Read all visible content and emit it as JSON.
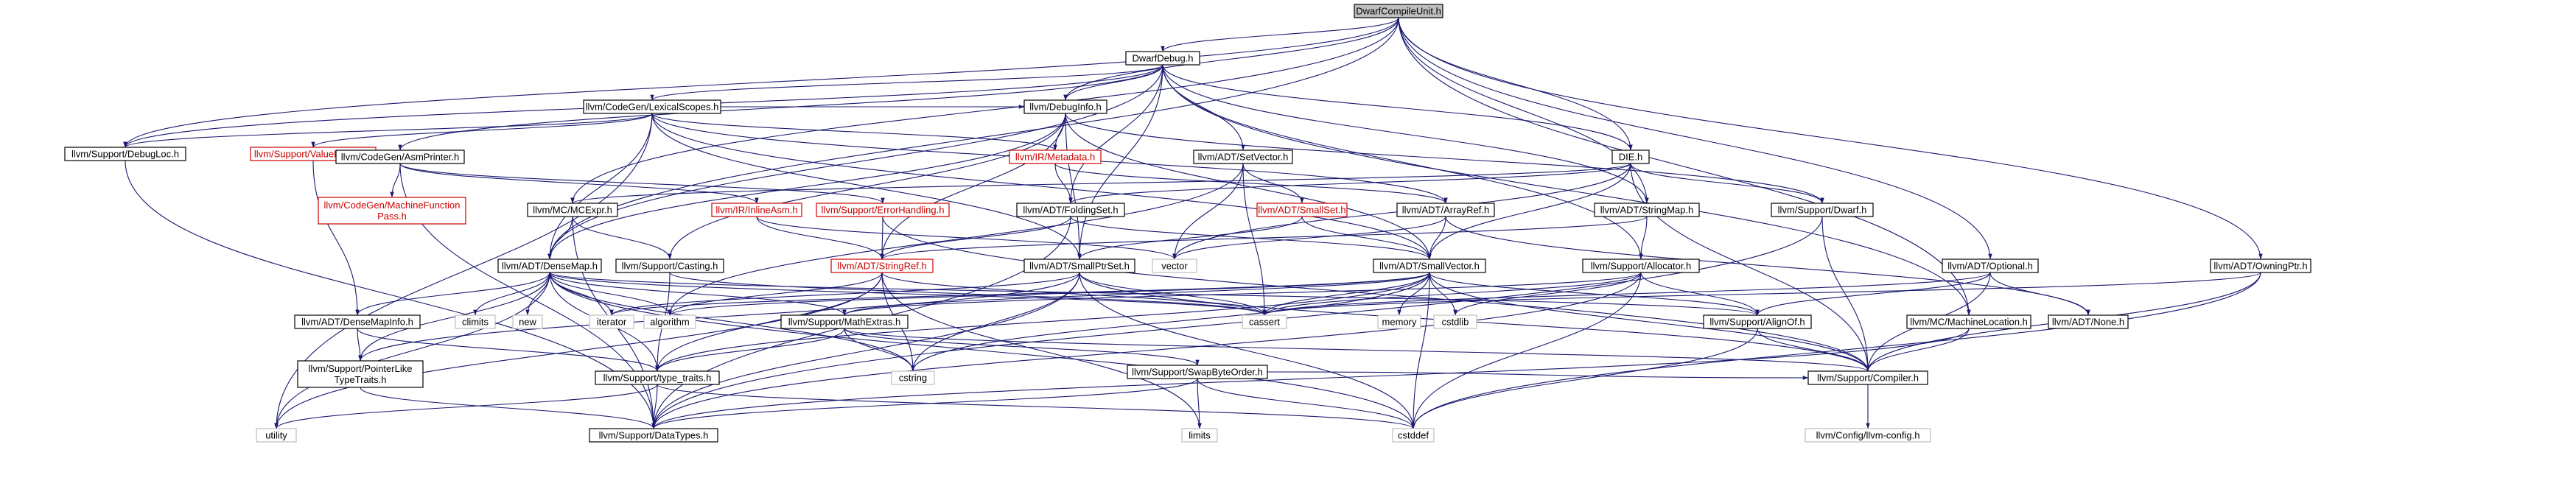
{
  "graph": {
    "title": "DwarfCompileUnit.h",
    "colors": {
      "edge": "#191970",
      "text_normal": "#000000",
      "text_missing": "#cc0000",
      "border_normal": "#000000",
      "border_missing": "#cc0000",
      "border_system": "#bfbfbf",
      "root_fill": "#bfbfbf",
      "fill": "#ffffff"
    },
    "nodes": [
      {
        "id": "root",
        "label": "DwarfCompileUnit.h",
        "kind": "root"
      },
      {
        "id": "dwarfdebug",
        "label": "DwarfDebug.h",
        "kind": "normal"
      },
      {
        "id": "lexicalscopes",
        "label": "llvm/CodeGen/LexicalScopes.h",
        "kind": "normal"
      },
      {
        "id": "debuginfo",
        "label": "llvm/DebugInfo.h",
        "kind": "normal"
      },
      {
        "id": "debugloc",
        "label": "llvm/Support/DebugLoc.h",
        "kind": "normal"
      },
      {
        "id": "valuehandle",
        "label": "llvm/Support/ValueHandle.h",
        "kind": "missing"
      },
      {
        "id": "asmprinter",
        "label": "llvm/CodeGen/AsmPrinter.h",
        "kind": "normal"
      },
      {
        "id": "mdnode",
        "label": "llvm/IR/Metadata.h",
        "kind": "missing"
      },
      {
        "id": "setvector",
        "label": "llvm/ADT/SetVector.h",
        "kind": "normal"
      },
      {
        "id": "die",
        "label": "DIE.h",
        "kind": "normal"
      },
      {
        "id": "mfpass",
        "label": "llvm/CodeGen/MachineFunction\nPass.h",
        "kind": "missing"
      },
      {
        "id": "mcexpr",
        "label": "llvm/MC/MCExpr.h",
        "kind": "normal"
      },
      {
        "id": "inlineasm",
        "label": "llvm/IR/InlineAsm.h",
        "kind": "missing"
      },
      {
        "id": "errorhandling",
        "label": "llvm/Support/ErrorHandling.h",
        "kind": "missing"
      },
      {
        "id": "foldingset",
        "label": "llvm/ADT/FoldingSet.h",
        "kind": "normal"
      },
      {
        "id": "smallset",
        "label": "llvm/ADT/SmallSet.h",
        "kind": "missing"
      },
      {
        "id": "arrayref",
        "label": "llvm/ADT/ArrayRef.h",
        "kind": "normal"
      },
      {
        "id": "stringmap",
        "label": "llvm/ADT/StringMap.h",
        "kind": "normal"
      },
      {
        "id": "supportdwarf",
        "label": "llvm/Support/Dwarf.h",
        "kind": "normal"
      },
      {
        "id": "densemap",
        "label": "llvm/ADT/DenseMap.h",
        "kind": "normal"
      },
      {
        "id": "casting",
        "label": "llvm/Support/Casting.h",
        "kind": "normal"
      },
      {
        "id": "stringref",
        "label": "llvm/ADT/StringRef.h",
        "kind": "missing"
      },
      {
        "id": "smallptrset",
        "label": "llvm/ADT/SmallPtrSet.h",
        "kind": "normal"
      },
      {
        "id": "vector",
        "label": "vector",
        "kind": "system"
      },
      {
        "id": "smallvector",
        "label": "llvm/ADT/SmallVector.h",
        "kind": "normal"
      },
      {
        "id": "allocator",
        "label": "llvm/Support/Allocator.h",
        "kind": "normal"
      },
      {
        "id": "optional",
        "label": "llvm/ADT/Optional.h",
        "kind": "normal"
      },
      {
        "id": "owningptr",
        "label": "llvm/ADT/OwningPtr.h",
        "kind": "normal"
      },
      {
        "id": "densemapinfo",
        "label": "llvm/ADT/DenseMapInfo.h",
        "kind": "normal"
      },
      {
        "id": "climits",
        "label": "climits",
        "kind": "system"
      },
      {
        "id": "new",
        "label": "new",
        "kind": "system"
      },
      {
        "id": "iterator",
        "label": "iterator",
        "kind": "system"
      },
      {
        "id": "algorithm",
        "label": "algorithm",
        "kind": "system"
      },
      {
        "id": "mathextras",
        "label": "llvm/Support/MathExtras.h",
        "kind": "normal"
      },
      {
        "id": "cassert",
        "label": "cassert",
        "kind": "system"
      },
      {
        "id": "memory",
        "label": "memory",
        "kind": "system"
      },
      {
        "id": "cstdlib",
        "label": "cstdlib",
        "kind": "system"
      },
      {
        "id": "alignof",
        "label": "llvm/Support/AlignOf.h",
        "kind": "normal"
      },
      {
        "id": "machinelocation",
        "label": "llvm/MC/MachineLocation.h",
        "kind": "normal"
      },
      {
        "id": "none",
        "label": "llvm/ADT/None.h",
        "kind": "normal"
      },
      {
        "id": "pointerlike",
        "label": "llvm/Support/PointerLike\nTypeTraits.h",
        "kind": "normal"
      },
      {
        "id": "typetraits",
        "label": "llvm/Support/type_traits.h",
        "kind": "normal"
      },
      {
        "id": "swapbyteorder",
        "label": "llvm/Support/SwapByteOrder.h",
        "kind": "normal"
      },
      {
        "id": "compiler",
        "label": "llvm/Support/Compiler.h",
        "kind": "normal"
      },
      {
        "id": "utility",
        "label": "utility",
        "kind": "system"
      },
      {
        "id": "cstring",
        "label": "cstring",
        "kind": "system"
      },
      {
        "id": "datatypes",
        "label": "llvm/Support/DataTypes.h",
        "kind": "normal"
      },
      {
        "id": "limits",
        "label": "limits",
        "kind": "system"
      },
      {
        "id": "cstddef",
        "label": "cstddef",
        "kind": "system"
      },
      {
        "id": "llvmconfig",
        "label": "llvm/Config/llvm-config.h",
        "kind": "system"
      }
    ],
    "edges": [
      [
        "root",
        "dwarfdebug"
      ],
      [
        "root",
        "debuginfo"
      ],
      [
        "root",
        "debugloc"
      ],
      [
        "root",
        "die"
      ],
      [
        "root",
        "stringmap"
      ],
      [
        "root",
        "densemap"
      ],
      [
        "root",
        "mcexpr"
      ],
      [
        "root",
        "optional"
      ],
      [
        "root",
        "owningptr"
      ],
      [
        "root",
        "machinelocation"
      ],
      [
        "dwarfdebug",
        "lexicalscopes"
      ],
      [
        "dwarfdebug",
        "debuginfo"
      ],
      [
        "dwarfdebug",
        "debugloc"
      ],
      [
        "dwarfdebug",
        "asmprinter"
      ],
      [
        "dwarfdebug",
        "setvector"
      ],
      [
        "dwarfdebug",
        "die"
      ],
      [
        "dwarfdebug",
        "foldingset"
      ],
      [
        "dwarfdebug",
        "smallptrset"
      ],
      [
        "dwarfdebug",
        "densemap"
      ],
      [
        "dwarfdebug",
        "stringmap"
      ],
      [
        "dwarfdebug",
        "allocator"
      ],
      [
        "dwarfdebug",
        "machinelocation"
      ],
      [
        "lexicalscopes",
        "debuginfo"
      ],
      [
        "lexicalscopes",
        "debugloc"
      ],
      [
        "lexicalscopes",
        "valuehandle"
      ],
      [
        "lexicalscopes",
        "mdnode"
      ],
      [
        "lexicalscopes",
        "arrayref"
      ],
      [
        "lexicalscopes",
        "densemap"
      ],
      [
        "lexicalscopes",
        "smallptrset"
      ],
      [
        "lexicalscopes",
        "smallvector"
      ],
      [
        "lexicalscopes",
        "utility"
      ],
      [
        "debuginfo",
        "mdnode"
      ],
      [
        "debuginfo",
        "densemap"
      ],
      [
        "debuginfo",
        "smallptrset"
      ],
      [
        "debuginfo",
        "smallvector"
      ],
      [
        "debuginfo",
        "stringref"
      ],
      [
        "debuginfo",
        "casting"
      ],
      [
        "debuginfo",
        "supportdwarf"
      ],
      [
        "debugloc",
        "datatypes"
      ],
      [
        "valuehandle",
        "densemapinfo"
      ],
      [
        "asmprinter",
        "mfpass"
      ],
      [
        "asmprinter",
        "inlineasm"
      ],
      [
        "asmprinter",
        "errorhandling"
      ],
      [
        "asmprinter",
        "datatypes"
      ],
      [
        "mdnode",
        "foldingset"
      ],
      [
        "mdnode",
        "arrayref"
      ],
      [
        "setvector",
        "smallset"
      ],
      [
        "setvector",
        "algorithm"
      ],
      [
        "setvector",
        "cassert"
      ],
      [
        "setvector",
        "vector"
      ],
      [
        "die",
        "foldingset"
      ],
      [
        "die",
        "smallvector"
      ],
      [
        "die",
        "supportdwarf"
      ],
      [
        "die",
        "compiler"
      ],
      [
        "die",
        "vector"
      ],
      [
        "die",
        "mcexpr"
      ],
      [
        "mcexpr",
        "densemap"
      ],
      [
        "mcexpr",
        "casting"
      ],
      [
        "mcexpr",
        "datatypes"
      ],
      [
        "inlineasm",
        "stringref"
      ],
      [
        "inlineasm",
        "vector"
      ],
      [
        "errorhandling",
        "stringref"
      ],
      [
        "errorhandling",
        "compiler"
      ],
      [
        "foldingset",
        "smallvector"
      ],
      [
        "foldingset",
        "stringref"
      ],
      [
        "foldingset",
        "datatypes"
      ],
      [
        "smallset",
        "smallptrset"
      ],
      [
        "smallset",
        "smallvector"
      ],
      [
        "arrayref",
        "none"
      ],
      [
        "arrayref",
        "smallvector"
      ],
      [
        "arrayref",
        "vector"
      ],
      [
        "stringmap",
        "stringref"
      ],
      [
        "stringmap",
        "allocator"
      ],
      [
        "supportdwarf",
        "compiler"
      ],
      [
        "supportdwarf",
        "datatypes"
      ],
      [
        "densemap",
        "densemapinfo"
      ],
      [
        "densemap",
        "alignof"
      ],
      [
        "densemap",
        "mathextras"
      ],
      [
        "densemap",
        "pointerlike"
      ],
      [
        "densemap",
        "typetraits"
      ],
      [
        "densemap",
        "algorithm"
      ],
      [
        "densemap",
        "cassert"
      ],
      [
        "densemap",
        "climits"
      ],
      [
        "densemap",
        "cstddef"
      ],
      [
        "densemap",
        "cstring"
      ],
      [
        "densemap",
        "iterator"
      ],
      [
        "densemap",
        "new"
      ],
      [
        "densemap",
        "utility"
      ],
      [
        "casting",
        "typetraits"
      ],
      [
        "casting",
        "cassert"
      ],
      [
        "stringref",
        "typetraits"
      ],
      [
        "stringref",
        "algorithm"
      ],
      [
        "stringref",
        "cassert"
      ],
      [
        "stringref",
        "cstring"
      ],
      [
        "stringref",
        "limits"
      ],
      [
        "stringref",
        "string"
      ],
      [
        "stringref",
        "utility"
      ],
      [
        "smallptrset",
        "compiler"
      ],
      [
        "smallptrset",
        "datatypes"
      ],
      [
        "smallptrset",
        "pointerlike"
      ],
      [
        "smallptrset",
        "cassert"
      ],
      [
        "smallptrset",
        "cstddef"
      ],
      [
        "smallptrset",
        "cstring"
      ],
      [
        "smallptrset",
        "iterator"
      ],
      [
        "smallvector",
        "alignof"
      ],
      [
        "smallvector",
        "compiler"
      ],
      [
        "smallvector",
        "mathextras"
      ],
      [
        "smallvector",
        "typetraits"
      ],
      [
        "smallvector",
        "algorithm"
      ],
      [
        "smallvector",
        "cassert"
      ],
      [
        "smallvector",
        "cstddef"
      ],
      [
        "smallvector",
        "cstdlib"
      ],
      [
        "smallvector",
        "cstring"
      ],
      [
        "smallvector",
        "iterator"
      ],
      [
        "smallvector",
        "memory"
      ],
      [
        "allocator",
        "alignof"
      ],
      [
        "allocator",
        "datatypes"
      ],
      [
        "allocator",
        "mathextras"
      ],
      [
        "allocator",
        "cassert"
      ],
      [
        "allocator",
        "cstddef"
      ],
      [
        "allocator",
        "cstdlib"
      ],
      [
        "optional",
        "none"
      ],
      [
        "optional",
        "alignof"
      ],
      [
        "optional",
        "compiler"
      ],
      [
        "optional",
        "cassert"
      ],
      [
        "owningptr",
        "compiler"
      ],
      [
        "owningptr",
        "cassert"
      ],
      [
        "owningptr",
        "cstddef"
      ],
      [
        "densemapinfo",
        "pointerlike"
      ],
      [
        "densemapinfo",
        "typetraits"
      ],
      [
        "mathextras",
        "compiler"
      ],
      [
        "mathextras",
        "swapbyteorder"
      ],
      [
        "mathextras",
        "typetraits"
      ],
      [
        "mathextras",
        "cstring"
      ],
      [
        "alignof",
        "compiler"
      ],
      [
        "alignof",
        "cstddef"
      ],
      [
        "machinelocation",
        "compiler"
      ],
      [
        "machinelocation",
        "datatypes"
      ],
      [
        "pointerlike",
        "datatypes"
      ],
      [
        "typetraits",
        "datatypes"
      ],
      [
        "typetraits",
        "cstddef"
      ],
      [
        "typetraits",
        "utility"
      ],
      [
        "swapbyteorder",
        "compiler"
      ],
      [
        "swapbyteorder",
        "datatypes"
      ],
      [
        "swapbyteorder",
        "cstddef"
      ],
      [
        "swapbyteorder",
        "limits"
      ],
      [
        "compiler",
        "llvmconfig"
      ]
    ]
  }
}
